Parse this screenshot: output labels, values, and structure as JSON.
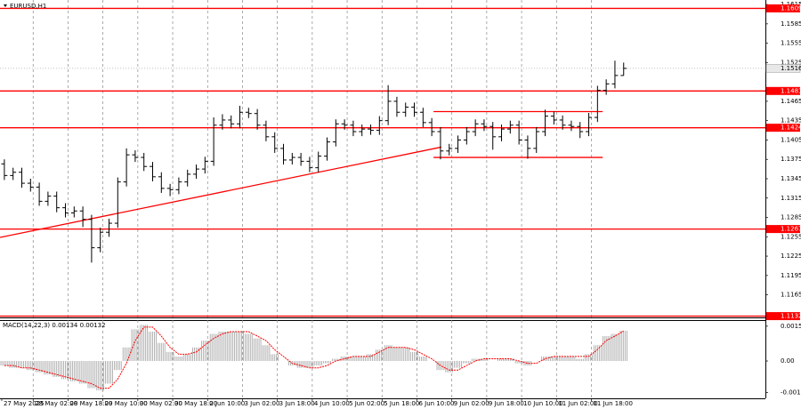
{
  "chart_data": {
    "type": "ohlc",
    "title": "EURUSD,H1",
    "open": [
      1.1368,
      1.135,
      1.1355,
      1.1338,
      1.1332,
      1.131,
      1.1318,
      1.13,
      1.1292,
      1.1295,
      1.1282,
      1.1238,
      1.1262,
      1.1276,
      1.134,
      1.1382,
      1.1378,
      1.1364,
      1.1348,
      1.133,
      1.1328,
      1.134,
      1.1352,
      1.136,
      1.1372,
      1.1428,
      1.1436,
      1.143,
      1.1448,
      1.1446,
      1.1428,
      1.141,
      1.1392,
      1.1374,
      1.1378,
      1.1372,
      1.1362,
      1.138,
      1.1402,
      1.143,
      1.1428,
      1.1418,
      1.1422,
      1.142,
      1.1435,
      1.1465,
      1.1448,
      1.1456,
      1.1448,
      1.1432,
      1.1418,
      1.1388,
      1.1392,
      1.1405,
      1.1418,
      1.143,
      1.1426,
      1.141,
      1.1422,
      1.1428,
      1.1405,
      1.1392,
      1.1418,
      1.1442,
      1.1436,
      1.1428,
      1.1426,
      1.1418,
      1.144,
      1.1482,
      1.1492,
      1.1505
    ],
    "high": [
      1.1375,
      1.1362,
      1.1362,
      1.1345,
      1.1339,
      1.1325,
      1.1325,
      1.1307,
      1.1302,
      1.1302,
      1.1289,
      1.1269,
      1.1283,
      1.1347,
      1.1392,
      1.1389,
      1.1385,
      1.1371,
      1.1355,
      1.1337,
      1.1347,
      1.1359,
      1.1367,
      1.1379,
      1.144,
      1.1445,
      1.1443,
      1.1458,
      1.1455,
      1.1453,
      1.1435,
      1.1417,
      1.1399,
      1.1385,
      1.1385,
      1.1379,
      1.1387,
      1.1409,
      1.1437,
      1.1437,
      1.1435,
      1.1429,
      1.1429,
      1.1442,
      1.149,
      1.1472,
      1.1463,
      1.1463,
      1.1455,
      1.1439,
      1.1425,
      1.1399,
      1.1412,
      1.1425,
      1.1437,
      1.1437,
      1.1433,
      1.1429,
      1.1435,
      1.1435,
      1.1412,
      1.1425,
      1.1452,
      1.1449,
      1.1443,
      1.1435,
      1.1433,
      1.1447,
      1.1489,
      1.1499,
      1.1528,
      1.1525
    ],
    "low": [
      1.1343,
      1.1343,
      1.1331,
      1.1325,
      1.1303,
      1.1303,
      1.1293,
      1.1285,
      1.1285,
      1.127,
      1.1215,
      1.1231,
      1.1255,
      1.1269,
      1.1333,
      1.1371,
      1.1357,
      1.1341,
      1.1323,
      1.1318,
      1.1321,
      1.1333,
      1.1345,
      1.1353,
      1.1365,
      1.1421,
      1.1423,
      1.1423,
      1.1439,
      1.1421,
      1.1403,
      1.1385,
      1.1367,
      1.1367,
      1.1365,
      1.1355,
      1.1355,
      1.1373,
      1.1395,
      1.1421,
      1.1411,
      1.1411,
      1.1413,
      1.1413,
      1.1428,
      1.1441,
      1.1441,
      1.1441,
      1.1425,
      1.1411,
      1.1375,
      1.1381,
      1.1385,
      1.1398,
      1.1411,
      1.1419,
      1.139,
      1.1403,
      1.1415,
      1.1398,
      1.1376,
      1.1385,
      1.1411,
      1.1429,
      1.1421,
      1.1419,
      1.1408,
      1.1411,
      1.1433,
      1.1475,
      1.1485,
      1.1505
    ],
    "close": [
      1.135,
      1.1355,
      1.1338,
      1.1332,
      1.131,
      1.1318,
      1.13,
      1.1292,
      1.1295,
      1.1282,
      1.1238,
      1.1262,
      1.1276,
      1.134,
      1.1382,
      1.1378,
      1.1364,
      1.1348,
      1.133,
      1.1328,
      1.134,
      1.1352,
      1.136,
      1.1372,
      1.1428,
      1.1436,
      1.143,
      1.1448,
      1.1446,
      1.1428,
      1.141,
      1.1392,
      1.1374,
      1.1378,
      1.1372,
      1.1362,
      1.138,
      1.1402,
      1.143,
      1.1428,
      1.1418,
      1.1422,
      1.142,
      1.1435,
      1.1465,
      1.1448,
      1.1456,
      1.1448,
      1.1432,
      1.1418,
      1.1388,
      1.1392,
      1.1405,
      1.1418,
      1.143,
      1.1426,
      1.141,
      1.1422,
      1.1428,
      1.1405,
      1.1392,
      1.1418,
      1.1442,
      1.1436,
      1.1428,
      1.1426,
      1.1418,
      1.144,
      1.1482,
      1.1492,
      1.1505,
      1.1516
    ],
    "color": "#000000",
    "xlim": [
      0,
      87.75
    ],
    "xticks": [
      {
        "value": 0.2,
        "label": "27 May 2025"
      },
      {
        "value": 3.8,
        "label": "28 May 02:00"
      },
      {
        "value": 7.8,
        "label": "28 May 18:00"
      },
      {
        "value": 11.8,
        "label": "29 May 10:00"
      },
      {
        "value": 15.8,
        "label": "30 May 02:00"
      },
      {
        "value": 19.8,
        "label": "30 May 18:00"
      },
      {
        "value": 23.8,
        "label": "2 Jun 10:00"
      },
      {
        "value": 27.8,
        "label": "3 Jun 02:00"
      },
      {
        "value": 31.8,
        "label": "3 Jun 18:00"
      },
      {
        "value": 35.8,
        "label": "4 Jun 10:00"
      },
      {
        "value": 39.8,
        "label": "5 Jun 02:00"
      },
      {
        "value": 43.8,
        "label": "5 Jun 18:00"
      },
      {
        "value": 47.8,
        "label": "6 Jun 10:00"
      },
      {
        "value": 51.8,
        "label": "9 Jun 02:00"
      },
      {
        "value": 55.8,
        "label": "9 Jun 18:00"
      },
      {
        "value": 59.8,
        "label": "10 Jun 10:00"
      },
      {
        "value": 63.8,
        "label": "11 Jun 02:00"
      },
      {
        "value": 67.8,
        "label": "11 Jun 18:00"
      }
    ],
    "ylim": [
      1.113,
      1.1622
    ],
    "yticks": [
      1.1615,
      1.1585,
      1.1555,
      1.1525,
      1.1465,
      1.1435,
      1.1405,
      1.1375,
      1.1345,
      1.1315,
      1.1285,
      1.1255,
      1.1225,
      1.1195,
      1.1165
    ],
    "levels": [
      1.1609,
      1.1481,
      1.1424,
      1.1267,
      1.1132
    ],
    "level_color": "#ff0000",
    "trendline": {
      "from_bar": 0,
      "from_price": 1.1254,
      "to_bar": 50.6,
      "to_price": 1.1394
    },
    "channel": {
      "from_bar": 49.7,
      "to_bar": 69.1,
      "upper": 1.1449,
      "lower": 1.1378
    },
    "macd": {
      "title": "MACD(14,22,3)",
      "histogram": [
        -0.0002,
        -0.0003,
        -0.0003,
        -0.0004,
        -0.0005,
        -0.0006,
        -0.0007,
        -0.0008,
        -0.0009,
        -0.001,
        -0.0012,
        -0.0013,
        -0.001,
        -0.0004,
        0.0006,
        0.0014,
        0.0016,
        0.0013,
        0.0008,
        0.0004,
        0.0002,
        0.0003,
        0.0006,
        0.0009,
        0.0012,
        0.0013,
        0.0013,
        0.0013,
        0.0012,
        0.001,
        0.0007,
        0.0003,
        0.0,
        -0.0002,
        -0.0003,
        -0.0003,
        -0.0002,
        -0.0001,
        0.0001,
        0.0002,
        0.0002,
        0.0002,
        0.0003,
        0.0005,
        0.0007,
        0.0006,
        0.0006,
        0.0004,
        0.0002,
        0.0,
        -0.0004,
        -0.0005,
        -0.0003,
        -0.0001,
        0.0001,
        0.0001,
        0.0,
        0.0001,
        0.0001,
        -0.0001,
        -0.0002,
        0.0,
        0.0002,
        0.0002,
        0.0002,
        0.0002,
        0.0001,
        0.0003,
        0.0007,
        0.0011,
        0.0012,
        0.00134
      ],
      "signal": [
        -0.0002,
        -0.0002,
        -0.0003,
        -0.0003,
        -0.0004,
        -0.0005,
        -0.0006,
        -0.0007,
        -0.0008,
        -0.0009,
        -0.001,
        -0.0012,
        -0.0012,
        -0.0008,
        -0.0001,
        0.0009,
        0.0015,
        0.0015,
        0.0011,
        0.0006,
        0.0003,
        0.0003,
        0.0004,
        0.0007,
        0.001,
        0.0012,
        0.0013,
        0.0013,
        0.0013,
        0.0011,
        0.0009,
        0.0005,
        0.0002,
        -0.0001,
        -0.0002,
        -0.0003,
        -0.0003,
        -0.0002,
        0.0,
        0.0001,
        0.0002,
        0.0002,
        0.0002,
        0.0004,
        0.0006,
        0.0006,
        0.0006,
        0.0005,
        0.0003,
        0.0001,
        -0.0002,
        -0.0004,
        -0.0004,
        -0.0002,
        0.0,
        0.0001,
        0.0001,
        0.0001,
        0.0001,
        0.0,
        -0.0001,
        -0.0001,
        0.0001,
        0.0002,
        0.0002,
        0.0002,
        0.0002,
        0.0002,
        0.0005,
        0.0009,
        0.0011,
        0.00132
      ],
      "histogram_color": "#a0a0a0",
      "signal_color": "#ff0000",
      "ylim": [
        -0.00165,
        0.00177
      ],
      "yticks": [
        0.00154,
        {
          "value": 0,
          "label": "0.00"
        },
        -0.0014
      ]
    }
  }
}
